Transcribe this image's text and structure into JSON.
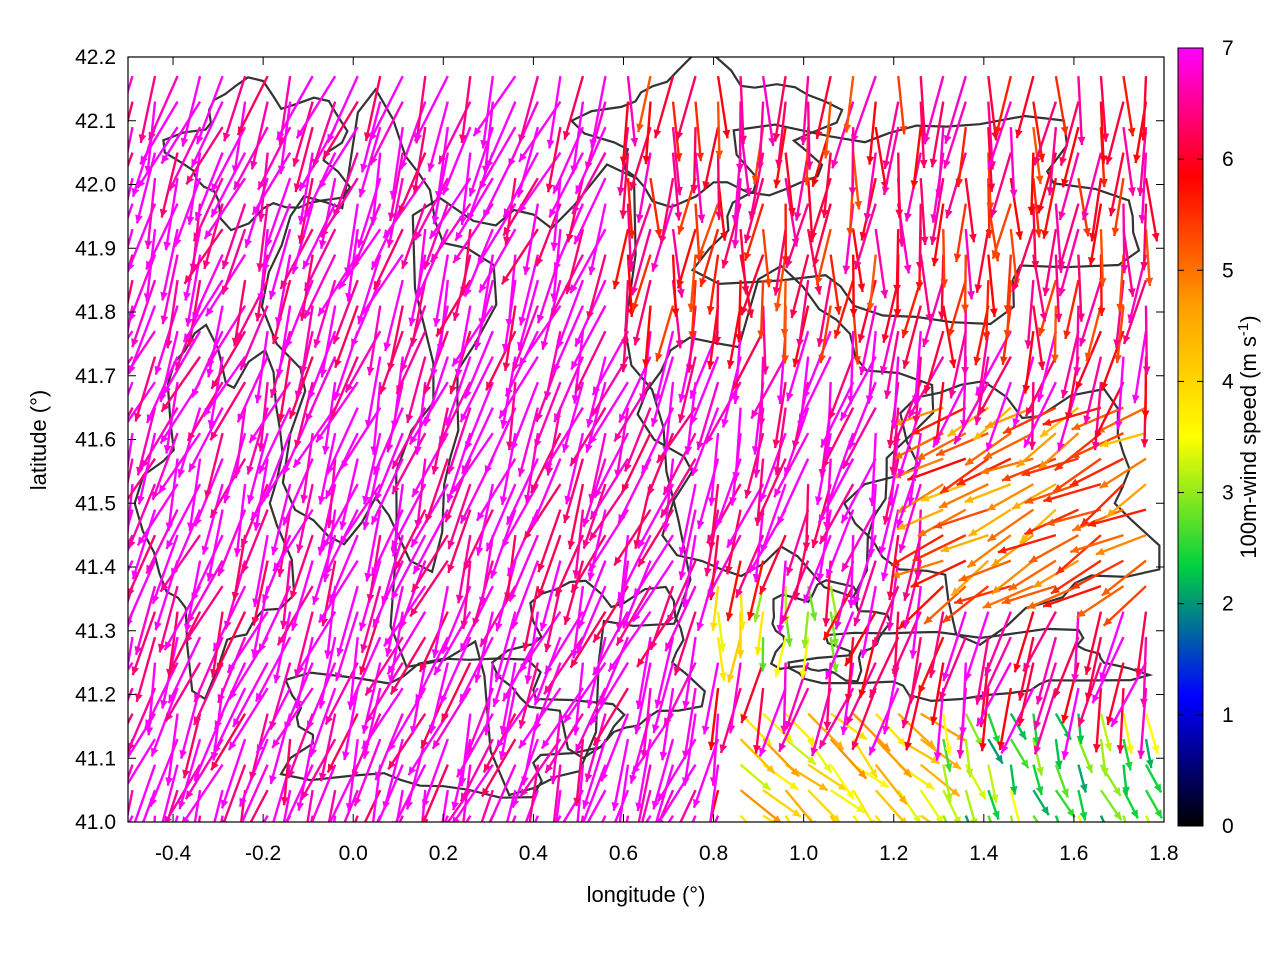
{
  "chart_data": {
    "type": "vector-field",
    "title": "",
    "xlabel": "longitude (°)",
    "ylabel": "latitude (°)",
    "xlim": [
      -0.5,
      1.8
    ],
    "ylim": [
      41.0,
      42.2
    ],
    "xticks": [
      -0.4,
      -0.2,
      0.0,
      0.2,
      0.4,
      0.6,
      0.8,
      1.0,
      1.2,
      1.4,
      1.6,
      1.8
    ],
    "xtick_labels": [
      "-0.4",
      "-0.2",
      "0.0",
      "0.2",
      "0.4",
      "0.6",
      "0.8",
      "1.0",
      "1.2",
      "1.4",
      "1.6",
      "1.8"
    ],
    "yticks": [
      41.0,
      41.1,
      41.2,
      41.3,
      41.4,
      41.5,
      41.6,
      41.7,
      41.8,
      41.9,
      42.0,
      42.1,
      42.2
    ],
    "ytick_labels": [
      "41.0",
      "41.1",
      "41.2",
      "41.3",
      "41.4",
      "41.5",
      "41.6",
      "41.7",
      "41.8",
      "41.9",
      "42.0",
      "42.1",
      "42.2"
    ],
    "colorbar": {
      "label_main": "100m-wind speed (m s",
      "label_sup": "-1",
      "label_end": ")",
      "range": [
        0,
        7
      ],
      "ticks": [
        0,
        1,
        2,
        3,
        4,
        5,
        6,
        7
      ],
      "tick_labels": [
        "0",
        "1",
        "2",
        "3",
        "4",
        "5",
        "6",
        "7"
      ],
      "palette": [
        "#000000",
        "#0000ff",
        "#00d040",
        "#ffff00",
        "#ffa000",
        "#ff0000",
        "#ff00ff"
      ]
    },
    "contour_color": "#333333",
    "wind_regions": [
      {
        "lon": [
          -0.5,
          0.8
        ],
        "lat": [
          41.0,
          42.2
        ],
        "speed": 7.0,
        "direction_deg": 160
      },
      {
        "lon": [
          0.6,
          1.8
        ],
        "lat": [
          41.8,
          42.2
        ],
        "speed": 6.0,
        "direction_deg": 175
      },
      {
        "lon": [
          0.8,
          1.3
        ],
        "lat": [
          41.45,
          41.8
        ],
        "speed": 7.0,
        "direction_deg": 165
      },
      {
        "lon": [
          0.8,
          1.1
        ],
        "lat": [
          41.25,
          41.4
        ],
        "speed": 3.5,
        "direction_deg": 180
      },
      {
        "lon": [
          0.85,
          1.3
        ],
        "lat": [
          41.0,
          41.2
        ],
        "speed": 4.0,
        "direction_deg": 225
      },
      {
        "lon": [
          1.3,
          1.8
        ],
        "lat": [
          41.0,
          41.2
        ],
        "speed": 2.8,
        "direction_deg": 200
      },
      {
        "lon": [
          1.3,
          1.8
        ],
        "lat": [
          41.35,
          41.65
        ],
        "speed": 5.0,
        "direction_deg": 120
      }
    ]
  }
}
